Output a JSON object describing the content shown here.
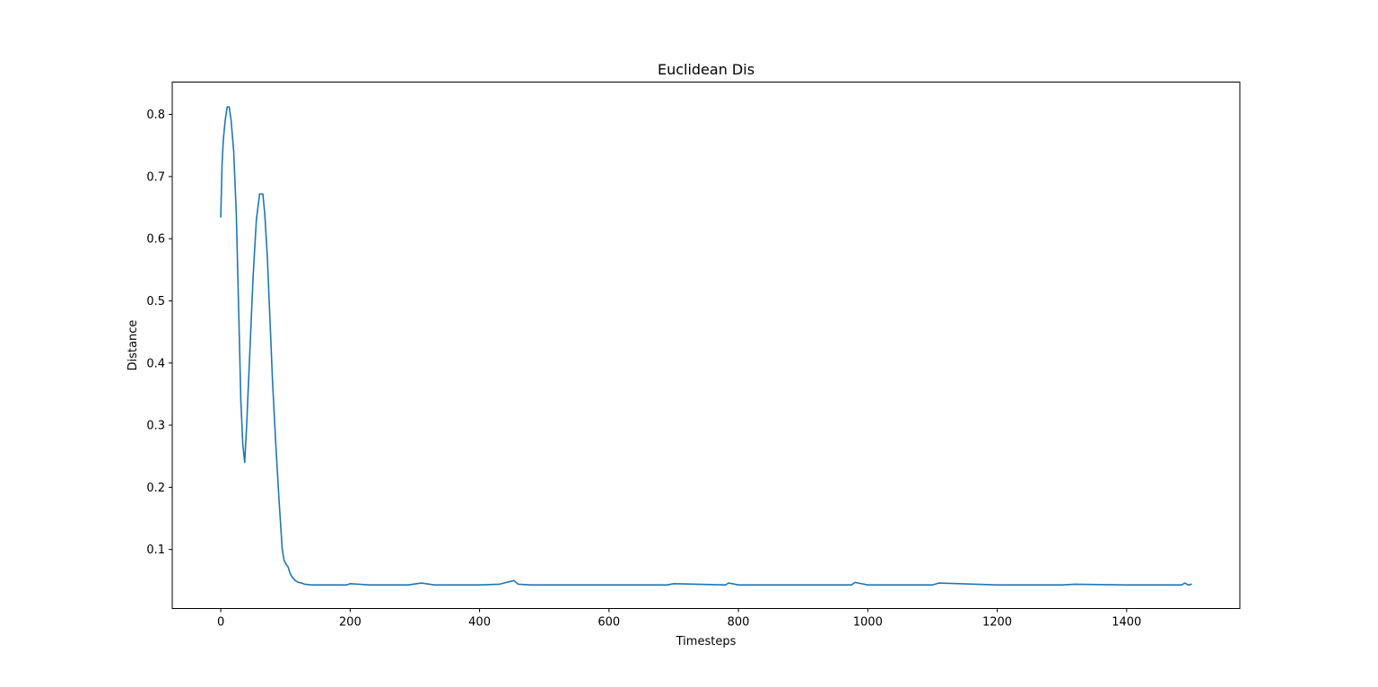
{
  "chart_data": {
    "type": "line",
    "title": "Euclidean Dis",
    "xlabel": "Timesteps",
    "ylabel": "Distance",
    "xlim": [
      -75,
      1575
    ],
    "ylim": [
      0.005,
      0.852
    ],
    "x_ticks": [
      0,
      200,
      400,
      600,
      800,
      1000,
      1200,
      1400
    ],
    "x_tick_labels": [
      "0",
      "200",
      "400",
      "600",
      "800",
      "1000",
      "1200",
      "1400"
    ],
    "y_ticks": [
      0.1,
      0.2,
      0.3,
      0.4,
      0.5,
      0.6,
      0.7,
      0.8
    ],
    "y_tick_labels": [
      "0.1",
      "0.2",
      "0.3",
      "0.4",
      "0.5",
      "0.6",
      "0.7",
      "0.8"
    ],
    "grid": false,
    "legend": "none",
    "series": [
      {
        "color": "#1f77b4",
        "x": [
          0,
          2,
          4,
          7,
          10,
          13,
          16,
          20,
          24,
          28,
          31,
          34,
          37,
          40,
          45,
          50,
          55,
          60,
          65,
          68,
          72,
          76,
          80,
          85,
          90,
          95,
          98,
          101,
          104,
          107,
          110,
          115,
          120,
          125,
          130,
          140,
          160,
          180,
          195,
          200,
          230,
          260,
          290,
          310,
          330,
          360,
          400,
          430,
          453,
          460,
          480,
          520,
          600,
          690,
          700,
          780,
          785,
          800,
          900,
          975,
          980,
          1000,
          1100,
          1110,
          1200,
          1300,
          1320,
          1400,
          1485,
          1490,
          1495,
          1500
        ],
        "y": [
          0.635,
          0.72,
          0.76,
          0.792,
          0.812,
          0.812,
          0.79,
          0.74,
          0.64,
          0.47,
          0.34,
          0.27,
          0.24,
          0.3,
          0.42,
          0.54,
          0.63,
          0.672,
          0.672,
          0.64,
          0.57,
          0.47,
          0.37,
          0.27,
          0.18,
          0.1,
          0.082,
          0.076,
          0.072,
          0.062,
          0.056,
          0.05,
          0.047,
          0.046,
          0.044,
          0.043,
          0.043,
          0.043,
          0.043,
          0.045,
          0.043,
          0.043,
          0.043,
          0.046,
          0.043,
          0.043,
          0.043,
          0.044,
          0.05,
          0.044,
          0.043,
          0.043,
          0.043,
          0.043,
          0.045,
          0.043,
          0.046,
          0.043,
          0.043,
          0.043,
          0.047,
          0.043,
          0.043,
          0.046,
          0.043,
          0.043,
          0.044,
          0.043,
          0.043,
          0.046,
          0.043,
          0.044
        ]
      }
    ]
  }
}
